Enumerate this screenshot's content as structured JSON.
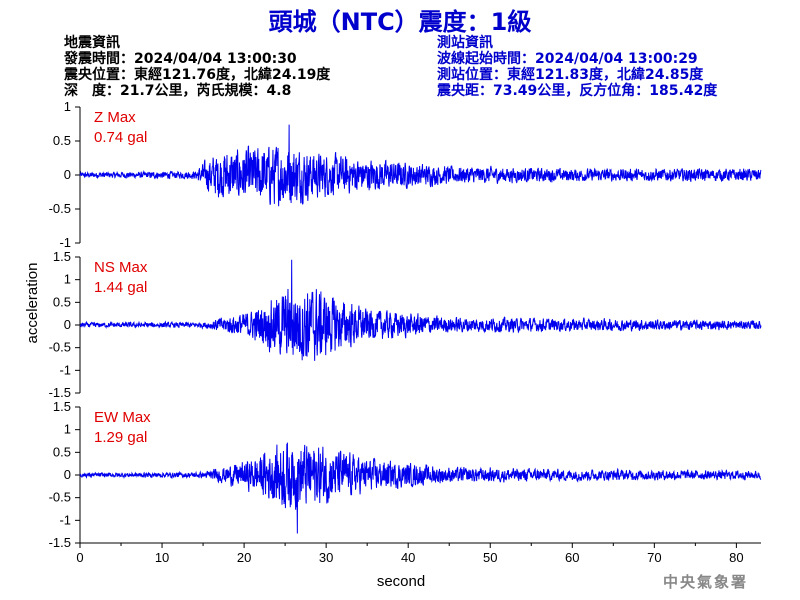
{
  "header": {
    "title": "頭城（NTC）震度：1級"
  },
  "quake_info": {
    "heading": "地震資訊",
    "time": "發震時間：2024/04/04 13:00:30",
    "location": "震央位置：東經121.76度，北緯24.19度",
    "depth_mag": "深　度：21.7公里，芮氏規模：4.8"
  },
  "station_info": {
    "heading": "測站資訊",
    "wave_start": "波線起始時間：2024/04/04 13:00:29",
    "location": "測站位置：東經121.83度，北緯24.85度",
    "distance": "震央距：73.49公里，反方位角：185.42度"
  },
  "footer": {
    "agency": "中央氣象署"
  },
  "chart_data": {
    "type": "line",
    "xlabel": "second",
    "ylabel": "acceleration",
    "xlim": [
      0,
      83
    ],
    "xticks": [
      "0",
      "10",
      "20",
      "30",
      "40",
      "50",
      "60",
      "70",
      "80"
    ],
    "color": "#0000ee",
    "panels": [
      {
        "name": "Z",
        "max_label": "Z Max",
        "max_value": "0.74 gal",
        "ylim": [
          -1,
          1
        ],
        "yticks": [
          "1",
          "0.5",
          "0",
          "-0.5",
          "-1"
        ],
        "envelope": [
          [
            0,
            0.05
          ],
          [
            14,
            0.07
          ],
          [
            15.5,
            0.3
          ],
          [
            17,
            0.45
          ],
          [
            20,
            0.5
          ],
          [
            25,
            0.6
          ],
          [
            28,
            0.45
          ],
          [
            35,
            0.3
          ],
          [
            45,
            0.17
          ],
          [
            60,
            0.12
          ],
          [
            83,
            0.12
          ]
        ],
        "peak": [
          25.5,
          0.74
        ]
      },
      {
        "name": "NS",
        "max_label": "NS Max",
        "max_value": "1.44 gal",
        "ylim": [
          -1.5,
          1.5
        ],
        "yticks": [
          "1.5",
          "1",
          "0.5",
          "0",
          "-0.5",
          "-1",
          "-1.5"
        ],
        "envelope": [
          [
            0,
            0.07
          ],
          [
            15,
            0.08
          ],
          [
            17,
            0.2
          ],
          [
            21,
            0.4
          ],
          [
            25,
            1.0
          ],
          [
            28,
            1.15
          ],
          [
            31,
            0.8
          ],
          [
            35,
            0.45
          ],
          [
            45,
            0.22
          ],
          [
            60,
            0.18
          ],
          [
            83,
            0.12
          ]
        ],
        "peak": [
          25.8,
          1.44
        ]
      },
      {
        "name": "EW",
        "max_label": "EW Max",
        "max_value": "1.29 gal",
        "ylim": [
          -1.5,
          1.5
        ],
        "yticks": [
          "1.5",
          "1",
          "0.5",
          "0",
          "-0.5",
          "-1",
          "-1.5"
        ],
        "envelope": [
          [
            0,
            0.06
          ],
          [
            15,
            0.08
          ],
          [
            17,
            0.2
          ],
          [
            21,
            0.45
          ],
          [
            25,
            1.0
          ],
          [
            28,
            0.9
          ],
          [
            31,
            0.75
          ],
          [
            35,
            0.45
          ],
          [
            45,
            0.22
          ],
          [
            60,
            0.16
          ],
          [
            83,
            0.12
          ]
        ],
        "peak": [
          26.5,
          -1.29
        ]
      }
    ]
  }
}
